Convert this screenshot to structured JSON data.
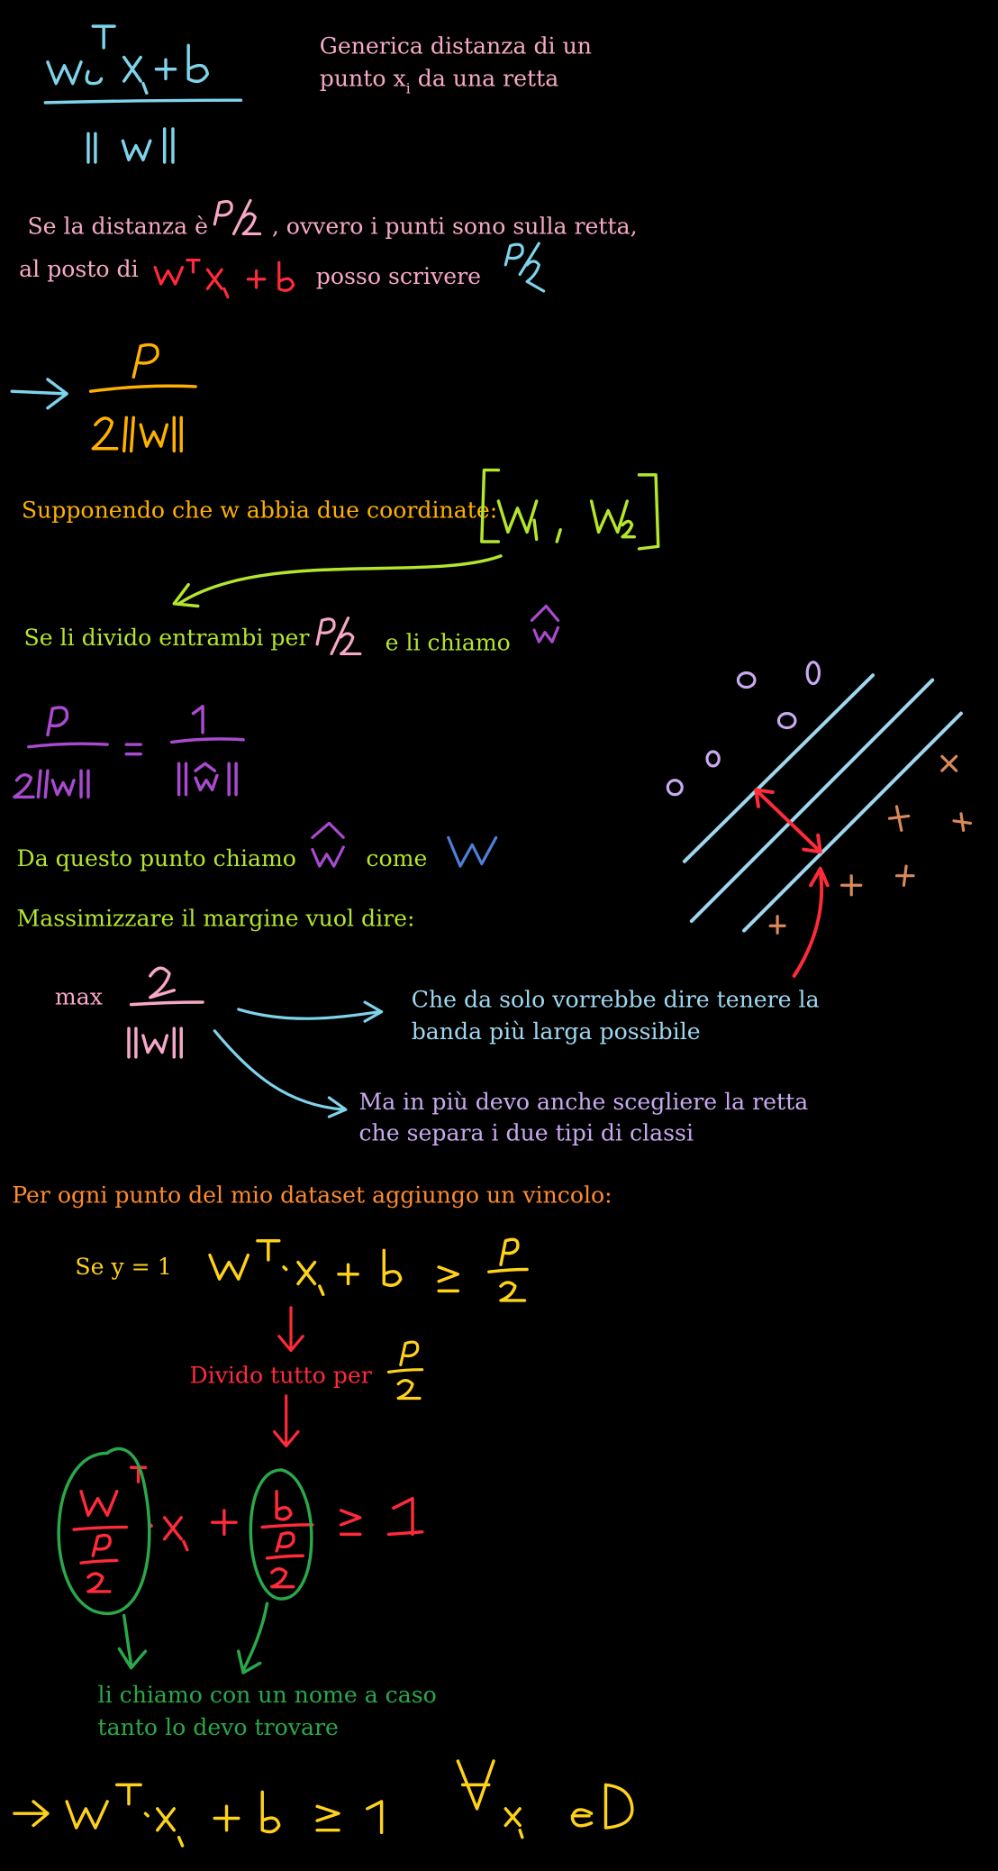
{
  "colors": {
    "pink": "#f7a8c8",
    "cyan": "#7fd3ea",
    "red": "#ff2a3a",
    "orange": "#ffb000",
    "yellow": "#ffd21a",
    "lime": "#b4e62c",
    "purple": "#a94ad0",
    "lavender": "#c9a9f0",
    "blue": "#4f7fd8",
    "green": "#2aa84a",
    "tan": "#d9895a",
    "deeporange": "#ff8a2a"
  },
  "notes": {
    "generic_line1": "Generica distanza di un",
    "generic_line2_a": "punto x",
    "generic_line2_sub": "i",
    "generic_line2_b": " da una retta",
    "dist_a": "Se la distanza è",
    "dist_b": ", ovvero i punti sono sulla retta,",
    "al_posto": "al posto di",
    "posso": "posso scrivere",
    "supponendo": "Supponendo che w abbia due coordinate:",
    "divido_entrambi": "Se li divido entrambi per",
    "li_chiamo": "e li chiamo",
    "da_questo": "Da questo punto chiamo",
    "come": "come",
    "massimizzare": "Massimizzare il margine vuol dire:",
    "max": "max",
    "banda_1": "Che da solo vorrebbe dire tenere la",
    "banda_2": "banda più larga possibile",
    "retta_1": "Ma in più devo anche scegliere la retta",
    "retta_2": "che separa i due tipi di classi",
    "vincolo": "Per ogni punto del mio dataset aggiungo un vincolo:",
    "se_y": "Se y = 1",
    "divido_tutto": "Divido tutto per",
    "nome_1": "li chiamo con un nome a caso",
    "nome_2": "tanto lo devo trovare"
  }
}
